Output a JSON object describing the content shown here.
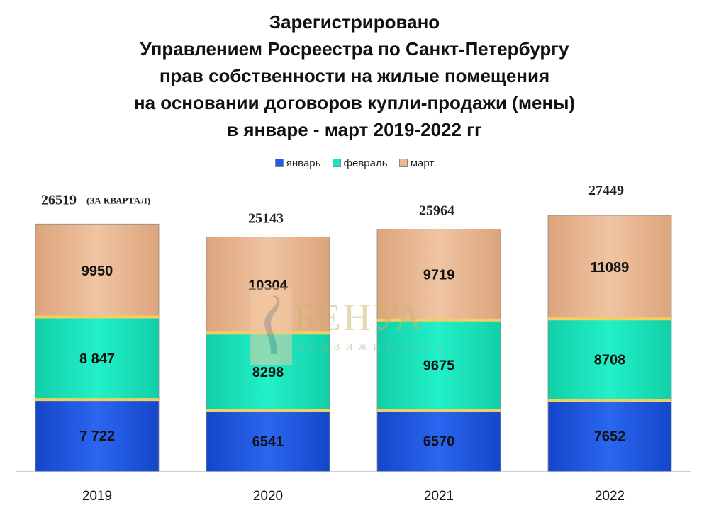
{
  "chart_data": {
    "type": "bar",
    "stacked": true,
    "title": [
      "Зарегистрировано",
      "Управлением Росреестра по Санкт-Петербургу",
      "прав собственности на жилые помещения",
      "на основании договоров купли-продажи (мены)",
      "в январе - март 2019-2022 гг"
    ],
    "categories": [
      "2019",
      "2020",
      "2021",
      "2022"
    ],
    "series": [
      {
        "name": "январь",
        "values": [
          7722,
          6541,
          6570,
          7652
        ],
        "labels": [
          "7 722",
          "6541",
          "6570",
          "7652"
        ]
      },
      {
        "name": "февраль",
        "values": [
          8847,
          8298,
          9675,
          8708
        ],
        "labels": [
          "8 847",
          "8298",
          "9675",
          "8708"
        ]
      },
      {
        "name": "март",
        "values": [
          9950,
          10304,
          9719,
          11089
        ],
        "labels": [
          "9950",
          "10304",
          "9719",
          "11089"
        ]
      }
    ],
    "totals": [
      "26519",
      "25143",
      "25964",
      "27449"
    ],
    "total_note": "(ЗА КВАРТАЛ)",
    "legend_position": "top",
    "ylim": [
      0,
      27449
    ],
    "colors": {
      "январь": "#1f5de8",
      "февраль": "#17e6bf",
      "март": "#e9b894",
      "separator": "#f0d060"
    }
  },
  "watermark": {
    "word": "БЕНУА",
    "subtitle": "НЕДВИЖИМОСТЬ"
  }
}
